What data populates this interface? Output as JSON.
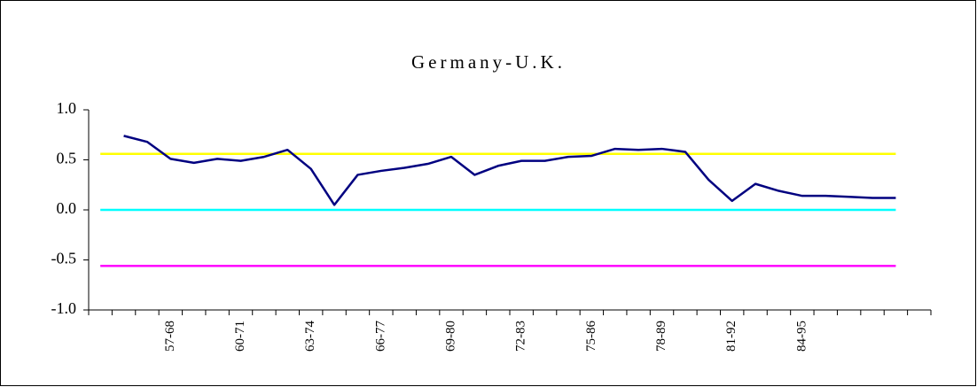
{
  "chart_data": {
    "type": "line",
    "title": "Germany-U.K.",
    "categories": [
      null,
      null,
      null,
      "57-68",
      null,
      null,
      "60-71",
      null,
      null,
      "63-74",
      null,
      null,
      "66-77",
      null,
      null,
      "69-80",
      null,
      null,
      "72-83",
      null,
      null,
      "75-86",
      null,
      null,
      "78-89",
      null,
      null,
      "81-92",
      null,
      null,
      "84-95",
      null,
      null,
      null,
      null,
      null
    ],
    "series": [
      {
        "color": "#ffff00",
        "values": [
          0.56,
          0.56,
          0.56,
          0.56,
          0.56,
          0.56,
          0.56,
          0.56,
          0.56,
          0.56,
          0.56,
          0.56,
          0.56,
          0.56,
          0.56,
          0.56,
          0.56,
          0.56,
          0.56,
          0.56,
          0.56,
          0.56,
          0.56,
          0.56,
          0.56,
          0.56,
          0.56,
          0.56,
          0.56,
          0.56,
          0.56,
          0.56,
          0.56,
          0.56,
          0.56,
          null
        ]
      },
      {
        "color": "#00ffff",
        "values": [
          0,
          0,
          0,
          0,
          0,
          0,
          0,
          0,
          0,
          0,
          0,
          0,
          0,
          0,
          0,
          0,
          0,
          0,
          0,
          0,
          0,
          0,
          0,
          0,
          0,
          0,
          0,
          0,
          0,
          0,
          0,
          0,
          0,
          0,
          0,
          null
        ]
      },
      {
        "color": "#ff00ff",
        "values": [
          -0.56,
          -0.56,
          -0.56,
          -0.56,
          -0.56,
          -0.56,
          -0.56,
          -0.56,
          -0.56,
          -0.56,
          -0.56,
          -0.56,
          -0.56,
          -0.56,
          -0.56,
          -0.56,
          -0.56,
          -0.56,
          -0.56,
          -0.56,
          -0.56,
          -0.56,
          -0.56,
          -0.56,
          -0.56,
          -0.56,
          -0.56,
          -0.56,
          -0.56,
          -0.56,
          -0.56,
          -0.56,
          -0.56,
          -0.56,
          -0.56,
          null
        ]
      },
      {
        "color": "#000080",
        "values": [
          null,
          0.74,
          0.68,
          0.51,
          0.47,
          0.51,
          0.49,
          0.53,
          0.6,
          0.41,
          0.05,
          0.35,
          0.39,
          0.42,
          0.46,
          0.53,
          0.35,
          0.44,
          0.49,
          0.49,
          0.53,
          0.54,
          0.61,
          0.6,
          0.61,
          0.58,
          0.3,
          0.09,
          0.26,
          0.19,
          0.14,
          0.14,
          0.13,
          0.12,
          0.12,
          null
        ]
      }
    ],
    "ylim": [
      -1,
      1
    ],
    "yticks": [
      {
        "value": -1,
        "label": "-1.0"
      },
      {
        "value": -0.5,
        "label": "-0.5"
      },
      {
        "value": 0,
        "label": "0.0"
      },
      {
        "value": 0.5,
        "label": "0.5"
      },
      {
        "value": 1,
        "label": "1.0"
      }
    ]
  }
}
